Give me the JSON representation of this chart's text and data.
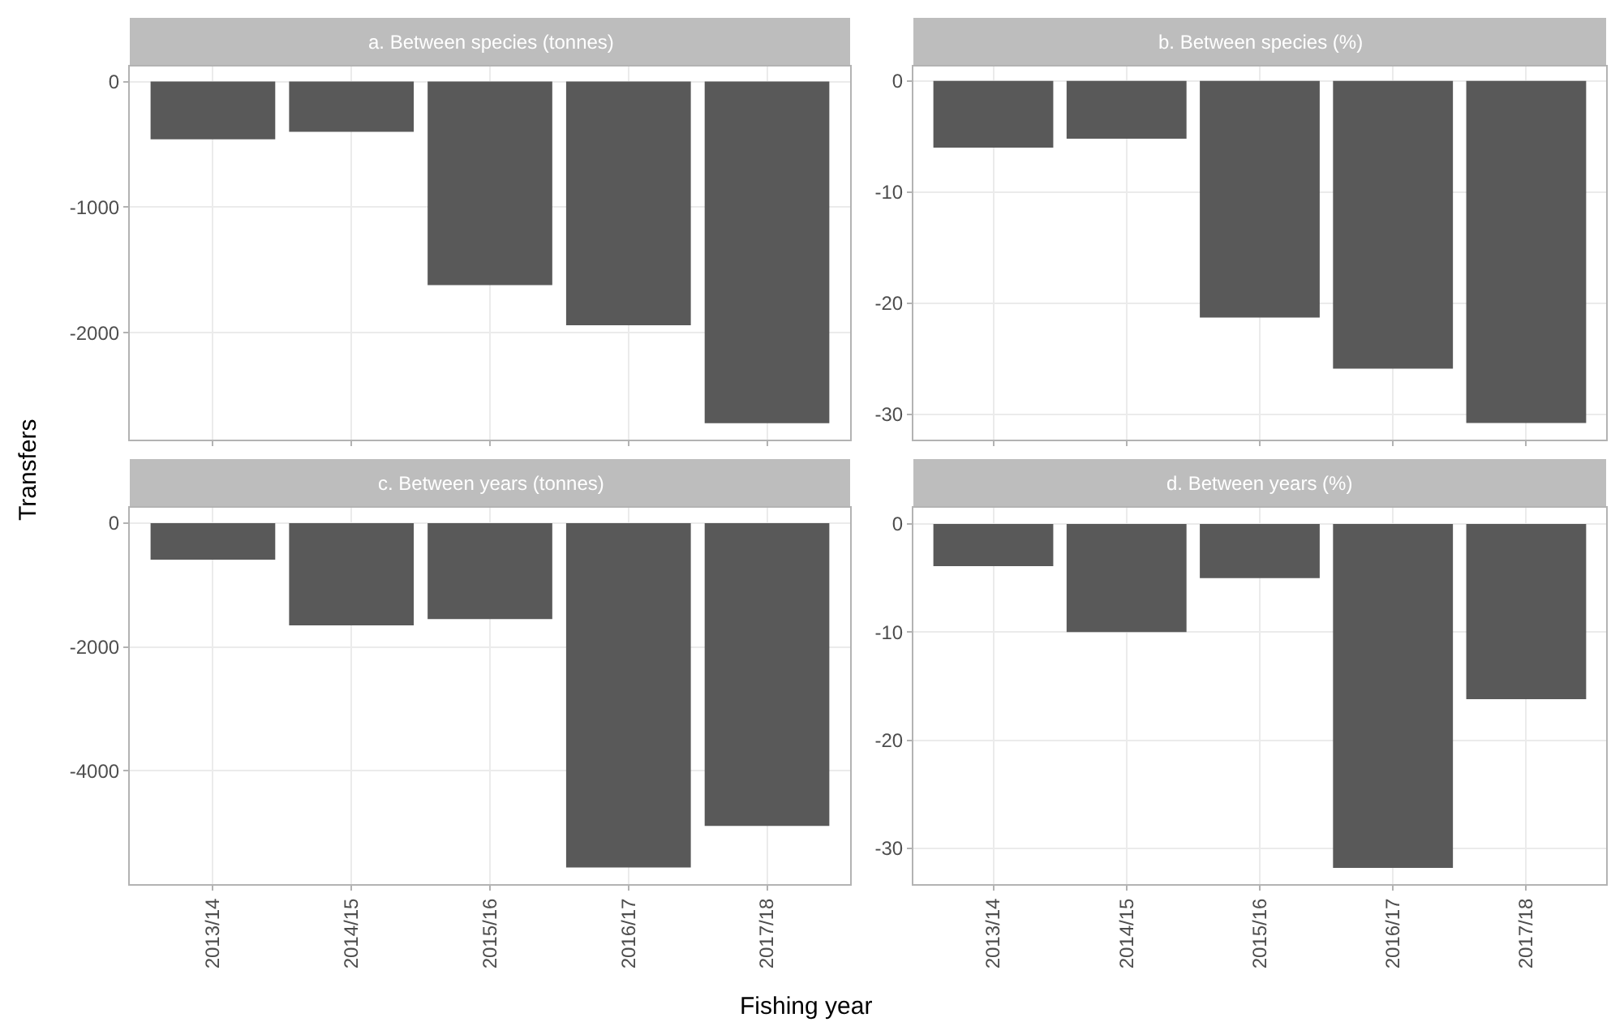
{
  "chart_data": [
    {
      "type": "bar",
      "title": "a. Between species (tonnes)",
      "ylabel": "Transfers",
      "categories": [
        "2013/14",
        "2014/15",
        "2015/16",
        "2016/17",
        "2017/18"
      ],
      "values": [
        -460,
        -400,
        -1620,
        -1940,
        -2720
      ],
      "color": "#595959",
      "ylim": [
        -2850,
        120
      ],
      "yticks": [
        -2000,
        -1000,
        0
      ],
      "grid": true,
      "tick_labels": "y"
    },
    {
      "type": "bar",
      "title": "b. Between species (%)",
      "categories": [
        "2013/14",
        "2014/15",
        "2015/16",
        "2016/17",
        "2017/18"
      ],
      "values": [
        -6.0,
        -5.2,
        -21.3,
        -25.9,
        -30.8
      ],
      "color": "#595959",
      "ylim": [
        -32.3,
        1.3
      ],
      "yticks": [
        -30,
        -20,
        -10,
        0
      ],
      "grid": true,
      "tick_labels": "y"
    },
    {
      "type": "bar",
      "title": "c. Between years (tonnes)",
      "xlabel": "Fishing year",
      "categories": [
        "2013/14",
        "2014/15",
        "2015/16",
        "2016/17",
        "2017/18"
      ],
      "values": [
        -590,
        -1650,
        -1550,
        -5560,
        -4890
      ],
      "color": "#595959",
      "ylim": [
        -5830,
        250
      ],
      "yticks": [
        -4000,
        -2000,
        0
      ],
      "grid": true
    },
    {
      "type": "bar",
      "title": "d. Between years (%)",
      "categories": [
        "2013/14",
        "2014/15",
        "2015/16",
        "2016/17",
        "2017/18"
      ],
      "values": [
        -3.9,
        -10.0,
        -5.0,
        -31.8,
        -16.2
      ],
      "color": "#595959",
      "ylim": [
        -33.3,
        1.5
      ],
      "yticks": [
        -30,
        -20,
        -10,
        0
      ],
      "grid": true
    }
  ]
}
